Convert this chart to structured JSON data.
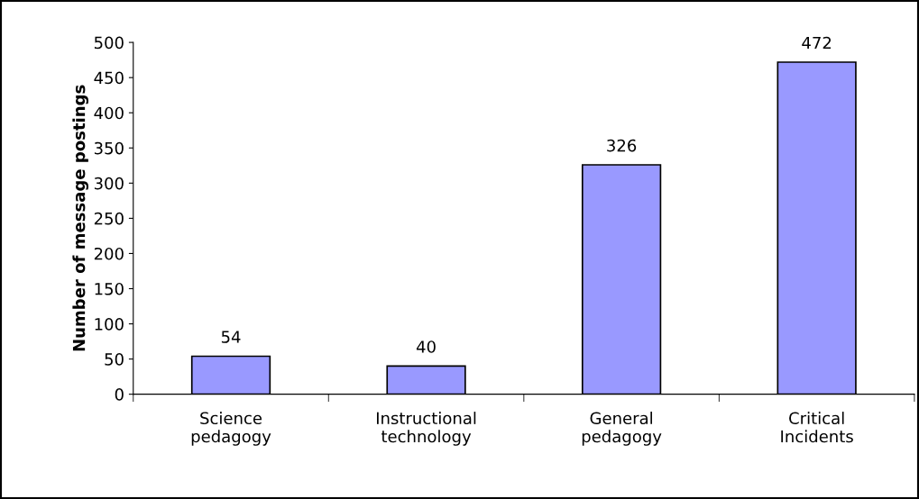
{
  "chart_data": {
    "type": "bar",
    "ylabel": "Number of message postings",
    "categories": [
      "Science\npedagogy",
      "Instructional\ntechnology",
      "General\npedagogy",
      "Critical\nIncidents"
    ],
    "values": [
      54,
      40,
      326,
      472
    ],
    "color": "#9999ff",
    "ylim": [
      0,
      500
    ],
    "yticks": [
      0,
      50,
      100,
      150,
      200,
      250,
      300,
      350,
      400,
      450,
      500
    ],
    "data_labels": true,
    "grid": false,
    "legend": false
  }
}
